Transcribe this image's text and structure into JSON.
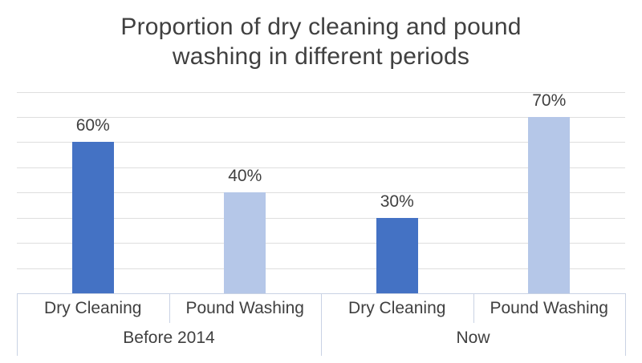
{
  "title_lines": [
    "Proportion of dry cleaning and pound",
    "washing in different periods"
  ],
  "chart_data": {
    "type": "bar",
    "title": "Proportion of dry cleaning and pound washing in different periods",
    "groups": [
      {
        "label": "Before 2014",
        "bars": [
          {
            "category": "Dry Cleaning",
            "value": 60,
            "value_label": "60%",
            "color": "#4472c4"
          },
          {
            "category": "Pound Washing",
            "value": 40,
            "value_label": "40%",
            "color": "#b5c7e8"
          }
        ]
      },
      {
        "label": "Now",
        "bars": [
          {
            "category": "Dry Cleaning",
            "value": 30,
            "value_label": "30%",
            "color": "#4472c4"
          },
          {
            "category": "Pound Washing",
            "value": 70,
            "value_label": "70%",
            "color": "#b5c7e8"
          }
        ]
      }
    ],
    "xlabel": "",
    "ylabel": "",
    "ylim": [
      0,
      80
    ],
    "gridline_interval": 10,
    "grid": true,
    "y_tick_labels_visible": false,
    "legend_position": "none",
    "axis_unit": "percent"
  },
  "colors": {
    "dry_cleaning_bar": "#4472c4",
    "pound_washing_bar": "#b5c7e8",
    "gridline": "#dedede",
    "axis_table_line": "#c9d2e4",
    "text": "#404040",
    "background": "#ffffff"
  }
}
